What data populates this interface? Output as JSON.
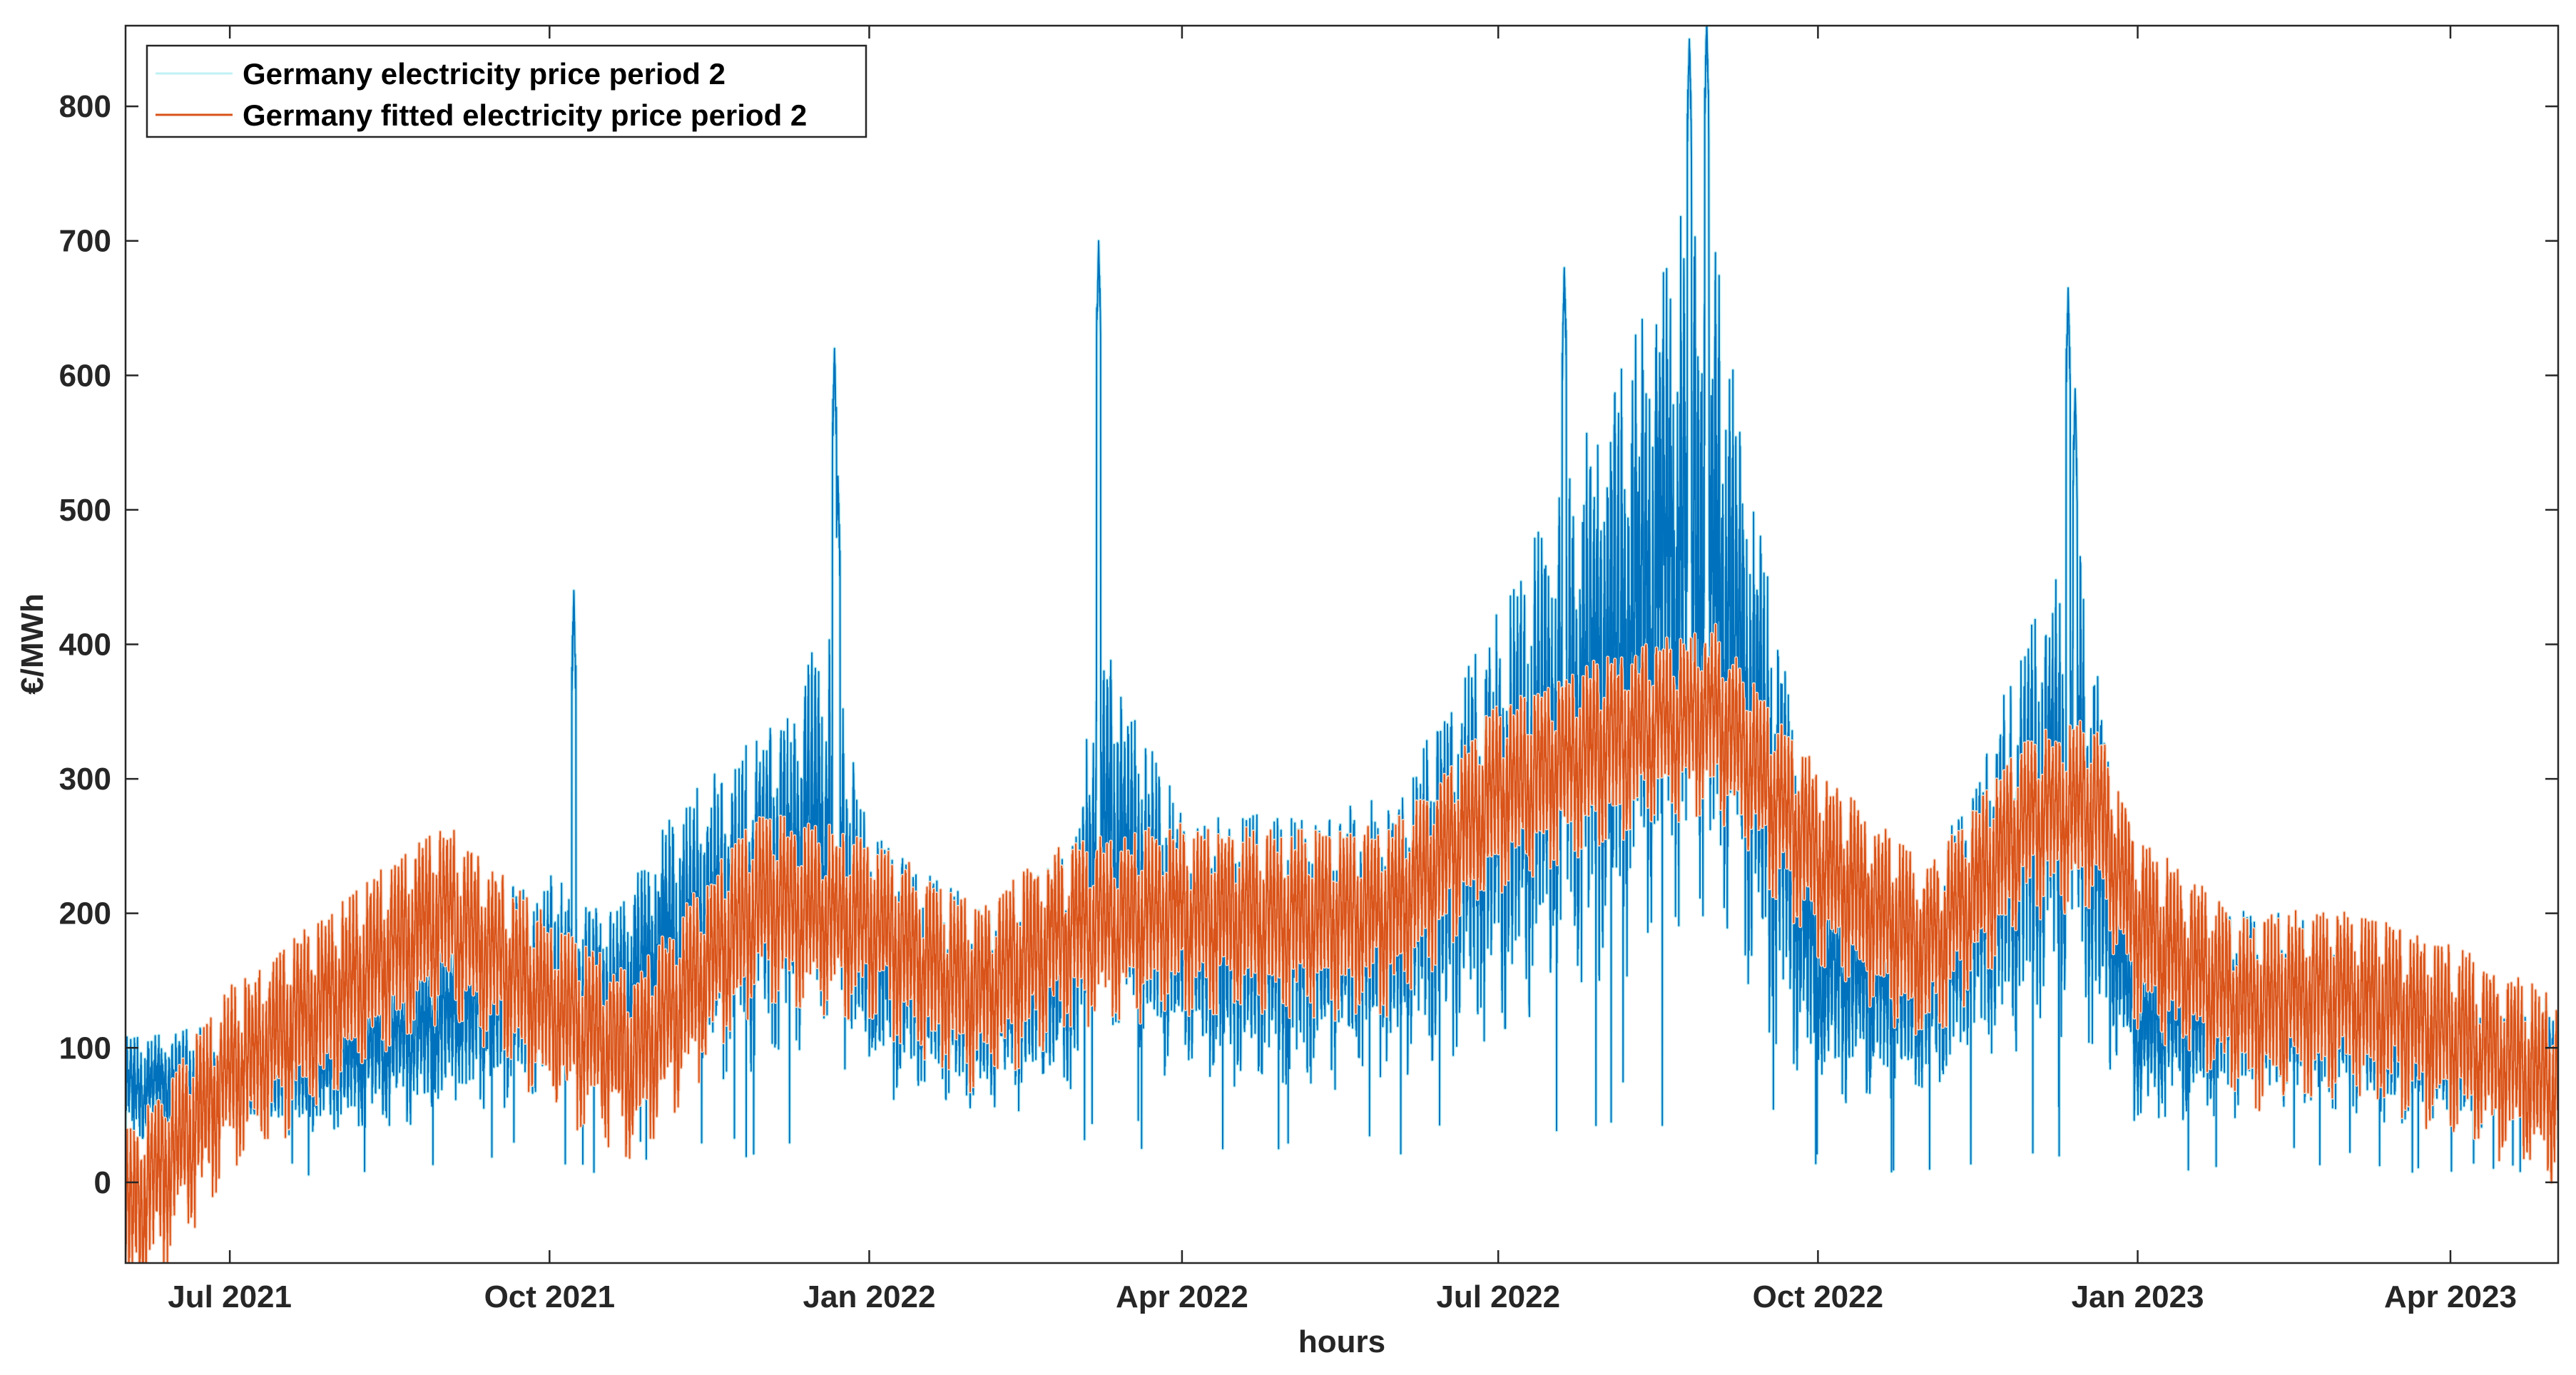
{
  "chart_data": {
    "type": "line",
    "title": "",
    "xlabel": "hours",
    "ylabel": "€/MWh",
    "ylim": [
      -60,
      860
    ],
    "yticks": [
      0,
      100,
      200,
      300,
      400,
      500,
      600,
      700,
      800
    ],
    "xlim": [
      "2021-06-01",
      "2023-05-02"
    ],
    "xticks": [
      {
        "label": "Jul 2021",
        "date": "2021-07-01"
      },
      {
        "label": "Oct 2021",
        "date": "2021-10-01"
      },
      {
        "label": "Jan 2022",
        "date": "2022-01-01"
      },
      {
        "label": "Apr 2022",
        "date": "2022-04-01"
      },
      {
        "label": "Jul 2022",
        "date": "2022-07-01"
      },
      {
        "label": "Oct 2022",
        "date": "2022-10-01"
      },
      {
        "label": "Jan 2023",
        "date": "2023-01-01"
      },
      {
        "label": "Apr 2023",
        "date": "2023-04-01"
      }
    ],
    "legend_position": "top-left",
    "series": [
      {
        "name": "Germany electricity price period 2",
        "color": "#0072BD",
        "halo_color": "#BFF1F5",
        "hourly_points_per_day": 24,
        "daily_mean": [
          {
            "date": "2021-06-01",
            "value": 75
          },
          {
            "date": "2021-07-01",
            "value": 80
          },
          {
            "date": "2021-08-01",
            "value": 95
          },
          {
            "date": "2021-09-01",
            "value": 130
          },
          {
            "date": "2021-09-20",
            "value": 150
          },
          {
            "date": "2021-10-01",
            "value": 160
          },
          {
            "date": "2021-10-20",
            "value": 140
          },
          {
            "date": "2021-11-01",
            "value": 180
          },
          {
            "date": "2021-12-01",
            "value": 230
          },
          {
            "date": "2021-12-20",
            "value": 280
          },
          {
            "date": "2022-01-01",
            "value": 180
          },
          {
            "date": "2022-02-01",
            "value": 140
          },
          {
            "date": "2022-03-01",
            "value": 170
          },
          {
            "date": "2022-03-08",
            "value": 280
          },
          {
            "date": "2022-04-01",
            "value": 190
          },
          {
            "date": "2022-05-01",
            "value": 185
          },
          {
            "date": "2022-06-01",
            "value": 200
          },
          {
            "date": "2022-07-01",
            "value": 290
          },
          {
            "date": "2022-08-01",
            "value": 400
          },
          {
            "date": "2022-08-28",
            "value": 520
          },
          {
            "date": "2022-09-15",
            "value": 330
          },
          {
            "date": "2022-10-01",
            "value": 170
          },
          {
            "date": "2022-11-01",
            "value": 150
          },
          {
            "date": "2022-12-01",
            "value": 280
          },
          {
            "date": "2022-12-15",
            "value": 330
          },
          {
            "date": "2023-01-01",
            "value": 120
          },
          {
            "date": "2023-02-01",
            "value": 140
          },
          {
            "date": "2023-03-01",
            "value": 130
          },
          {
            "date": "2023-04-01",
            "value": 100
          },
          {
            "date": "2023-05-02",
            "value": 95
          }
        ],
        "spikes": [
          {
            "date": "2021-10-08",
            "value": 440
          },
          {
            "date": "2021-12-22",
            "value": 620
          },
          {
            "date": "2021-12-23",
            "value": 525
          },
          {
            "date": "2022-03-08",
            "value": 700
          },
          {
            "date": "2022-07-20",
            "value": 680
          },
          {
            "date": "2022-08-25",
            "value": 850
          },
          {
            "date": "2022-08-30",
            "value": 865
          },
          {
            "date": "2022-12-12",
            "value": 665
          },
          {
            "date": "2022-12-14",
            "value": 590
          }
        ]
      },
      {
        "name": "Germany fitted electricity price period 2",
        "color": "#D95319",
        "halo_color": "#F9D9C6",
        "hourly_points_per_day": 24,
        "daily_mean": [
          {
            "date": "2021-06-01",
            "value": -20
          },
          {
            "date": "2021-07-01",
            "value": 90
          },
          {
            "date": "2021-08-01",
            "value": 150
          },
          {
            "date": "2021-09-01",
            "value": 210
          },
          {
            "date": "2021-10-01",
            "value": 140
          },
          {
            "date": "2021-10-25",
            "value": 100
          },
          {
            "date": "2021-12-01",
            "value": 220
          },
          {
            "date": "2022-01-01",
            "value": 200
          },
          {
            "date": "2022-02-01",
            "value": 150
          },
          {
            "date": "2022-03-01",
            "value": 200
          },
          {
            "date": "2022-04-01",
            "value": 210
          },
          {
            "date": "2022-05-01",
            "value": 205
          },
          {
            "date": "2022-06-01",
            "value": 210
          },
          {
            "date": "2022-07-01",
            "value": 300
          },
          {
            "date": "2022-08-01",
            "value": 335
          },
          {
            "date": "2022-09-01",
            "value": 360
          },
          {
            "date": "2022-10-01",
            "value": 250
          },
          {
            "date": "2022-11-01",
            "value": 180
          },
          {
            "date": "2022-12-01",
            "value": 280
          },
          {
            "date": "2022-12-20",
            "value": 290
          },
          {
            "date": "2023-01-01",
            "value": 200
          },
          {
            "date": "2023-02-01",
            "value": 140
          },
          {
            "date": "2023-03-01",
            "value": 150
          },
          {
            "date": "2023-04-01",
            "value": 120
          },
          {
            "date": "2023-05-02",
            "value": 80
          }
        ]
      }
    ]
  }
}
